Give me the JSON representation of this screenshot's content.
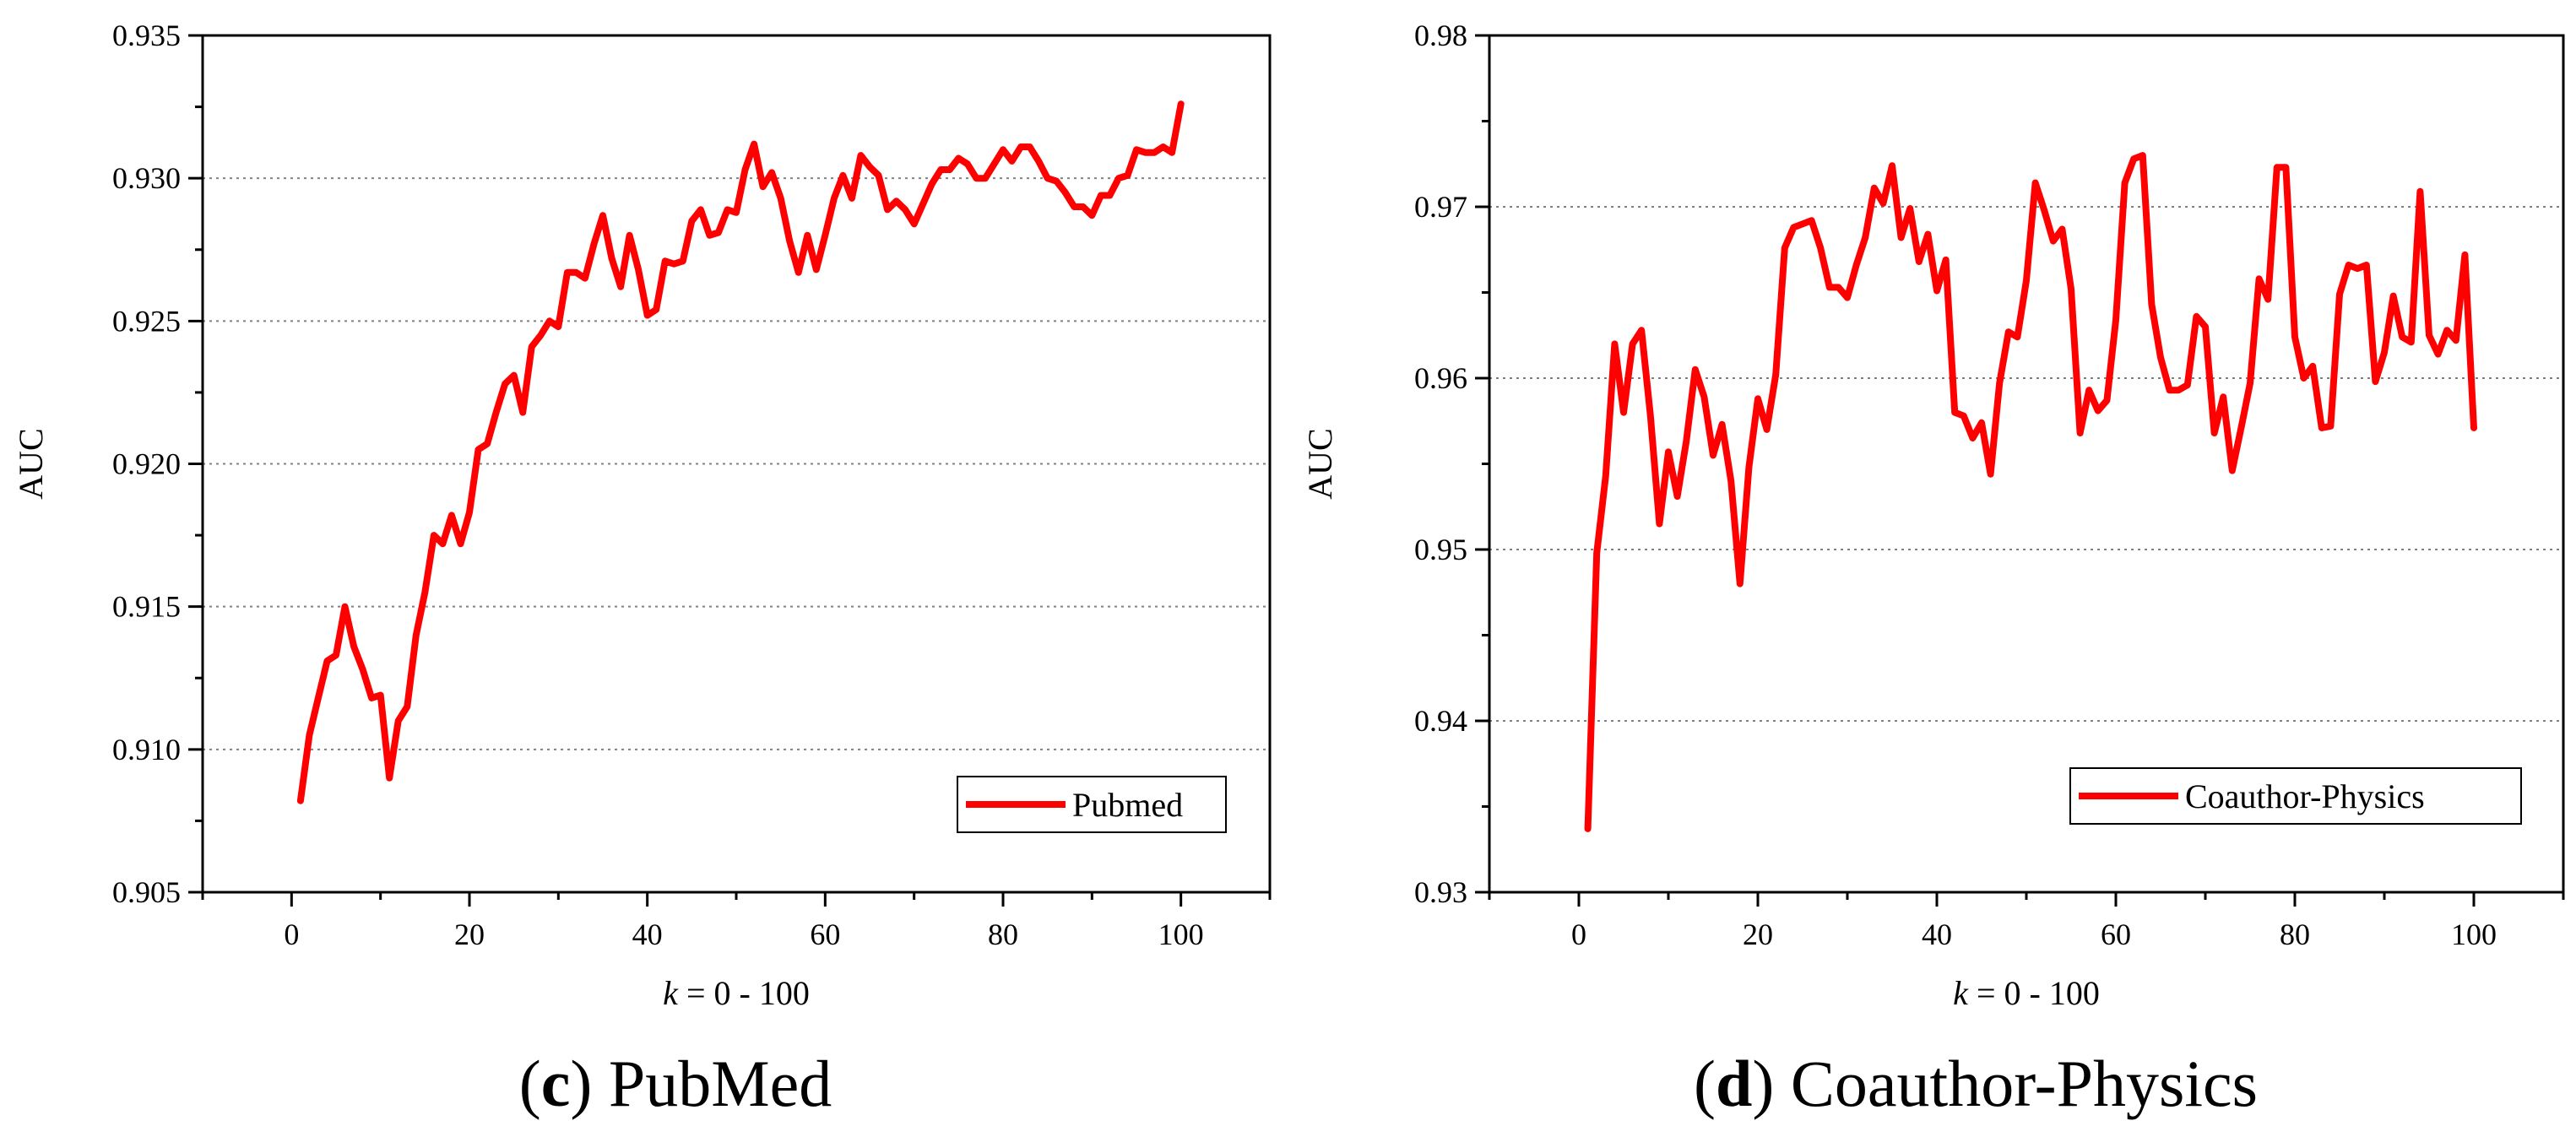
{
  "colors": {
    "line": "#ff0000",
    "axis": "#000000",
    "grid": "#808080",
    "background": "#ffffff"
  },
  "chart_data": [
    {
      "type": "line",
      "caption": {
        "letter": "c",
        "text": " PubMed"
      },
      "xlabel": {
        "italic": "k",
        "rest": " = 0 - 100"
      },
      "ylabel": "AUC",
      "xlim": [
        -10,
        110
      ],
      "ylim": [
        0.905,
        0.935
      ],
      "xticks": [
        0,
        20,
        40,
        60,
        80,
        100
      ],
      "xtick_labels": [
        "0",
        "20",
        "40",
        "60",
        "80",
        "100"
      ],
      "yticks": [
        0.905,
        0.91,
        0.915,
        0.92,
        0.925,
        0.93,
        0.935
      ],
      "ytick_labels": [
        "0.905",
        "0.910",
        "0.915",
        "0.920",
        "0.925",
        "0.930",
        "0.935"
      ],
      "grid": "horizontal dotted at major y ticks",
      "legend_position": "bottom-right",
      "series": [
        {
          "name": "Pubmed",
          "x": [
            1,
            2,
            3,
            4,
            5,
            6,
            7,
            8,
            9,
            10,
            11,
            12,
            13,
            14,
            15,
            16,
            17,
            18,
            19,
            20,
            21,
            22,
            23,
            24,
            25,
            26,
            27,
            28,
            29,
            30,
            31,
            32,
            33,
            34,
            35,
            36,
            37,
            38,
            39,
            40,
            41,
            42,
            43,
            44,
            45,
            46,
            47,
            48,
            49,
            50,
            51,
            52,
            53,
            54,
            55,
            56,
            57,
            58,
            59,
            60,
            61,
            62,
            63,
            64,
            65,
            66,
            67,
            68,
            69,
            70,
            71,
            72,
            73,
            74,
            75,
            76,
            77,
            78,
            79,
            80,
            81,
            82,
            83,
            84,
            85,
            86,
            87,
            88,
            89,
            90,
            91,
            92,
            93,
            94,
            95,
            96,
            97,
            98,
            99,
            100
          ],
          "y": [
            0.9082,
            0.9105,
            0.9118,
            0.9131,
            0.9133,
            0.915,
            0.9136,
            0.9128,
            0.9118,
            0.9119,
            0.909,
            0.911,
            0.9115,
            0.914,
            0.9155,
            0.9175,
            0.9172,
            0.9182,
            0.9172,
            0.9183,
            0.9205,
            0.9207,
            0.9218,
            0.9228,
            0.9231,
            0.9218,
            0.9241,
            0.9245,
            0.925,
            0.9248,
            0.9267,
            0.9267,
            0.9265,
            0.9277,
            0.9287,
            0.9272,
            0.9262,
            0.928,
            0.9268,
            0.9252,
            0.9254,
            0.9271,
            0.927,
            0.9271,
            0.9285,
            0.9289,
            0.928,
            0.9281,
            0.9289,
            0.9288,
            0.9303,
            0.9312,
            0.9297,
            0.9302,
            0.9293,
            0.9278,
            0.9267,
            0.928,
            0.9268,
            0.928,
            0.9293,
            0.9301,
            0.9293,
            0.9308,
            0.9304,
            0.9301,
            0.9289,
            0.9292,
            0.9289,
            0.9284,
            0.9291,
            0.9298,
            0.9303,
            0.9303,
            0.9307,
            0.9305,
            0.93,
            0.93,
            0.9305,
            0.931,
            0.9306,
            0.9311,
            0.9311,
            0.9306,
            0.93,
            0.9299,
            0.9295,
            0.929,
            0.929,
            0.9287,
            0.9294,
            0.9294,
            0.93,
            0.9301,
            0.931,
            0.9309,
            0.9309,
            0.9311,
            0.9309,
            0.9326
          ]
        }
      ]
    },
    {
      "type": "line",
      "caption": {
        "letter": "d",
        "text": " Coauthor-Physics"
      },
      "xlabel": {
        "italic": "k",
        "rest": " = 0 - 100"
      },
      "ylabel": "AUC",
      "xlim": [
        -10,
        110
      ],
      "ylim": [
        0.93,
        0.98
      ],
      "xticks": [
        0,
        20,
        40,
        60,
        80,
        100
      ],
      "xtick_labels": [
        "0",
        "20",
        "40",
        "60",
        "80",
        "100"
      ],
      "yticks": [
        0.93,
        0.94,
        0.95,
        0.96,
        0.97,
        0.98
      ],
      "ytick_labels": [
        "0.93",
        "0.94",
        "0.95",
        "0.96",
        "0.97",
        "0.98"
      ],
      "grid": "horizontal dotted at major y ticks",
      "legend_position": "bottom-right",
      "series": [
        {
          "name": "Coauthor-Physics",
          "x": [
            1,
            2,
            3,
            4,
            5,
            6,
            7,
            8,
            9,
            10,
            11,
            12,
            13,
            14,
            15,
            16,
            17,
            18,
            19,
            20,
            21,
            22,
            23,
            24,
            25,
            26,
            27,
            28,
            29,
            30,
            31,
            32,
            33,
            34,
            35,
            36,
            37,
            38,
            39,
            40,
            41,
            42,
            43,
            44,
            45,
            46,
            47,
            48,
            49,
            50,
            51,
            52,
            53,
            54,
            55,
            56,
            57,
            58,
            59,
            60,
            61,
            62,
            63,
            64,
            65,
            66,
            67,
            68,
            69,
            70,
            71,
            72,
            73,
            74,
            75,
            76,
            77,
            78,
            79,
            80,
            81,
            82,
            83,
            84,
            85,
            86,
            87,
            88,
            89,
            90,
            91,
            92,
            93,
            94,
            95,
            96,
            97,
            98,
            99,
            100
          ],
          "y": [
            0.9337,
            0.9498,
            0.9543,
            0.962,
            0.958,
            0.962,
            0.9628,
            0.9578,
            0.9515,
            0.9557,
            0.9531,
            0.9563,
            0.9605,
            0.9589,
            0.9555,
            0.9573,
            0.954,
            0.948,
            0.9548,
            0.9588,
            0.957,
            0.9602,
            0.9676,
            0.9688,
            0.969,
            0.9692,
            0.9676,
            0.9653,
            0.9653,
            0.9647,
            0.9666,
            0.9682,
            0.9711,
            0.9702,
            0.9724,
            0.9682,
            0.9699,
            0.9668,
            0.9684,
            0.9651,
            0.9669,
            0.958,
            0.9578,
            0.9565,
            0.9574,
            0.9544,
            0.9597,
            0.9627,
            0.9624,
            0.9657,
            0.9714,
            0.9698,
            0.968,
            0.9687,
            0.9652,
            0.9568,
            0.9593,
            0.9581,
            0.9587,
            0.9634,
            0.9714,
            0.9728,
            0.973,
            0.9643,
            0.9612,
            0.9593,
            0.9593,
            0.9596,
            0.9636,
            0.963,
            0.9568,
            0.9589,
            0.9546,
            0.9571,
            0.9597,
            0.9658,
            0.9646,
            0.9723,
            0.9723,
            0.9624,
            0.96,
            0.9607,
            0.9571,
            0.9572,
            0.9649,
            0.9666,
            0.9664,
            0.9666,
            0.9598,
            0.9615,
            0.9648,
            0.9624,
            0.9621,
            0.9709,
            0.9625,
            0.9614,
            0.9628,
            0.9622,
            0.9672,
            0.9571
          ]
        }
      ]
    }
  ]
}
